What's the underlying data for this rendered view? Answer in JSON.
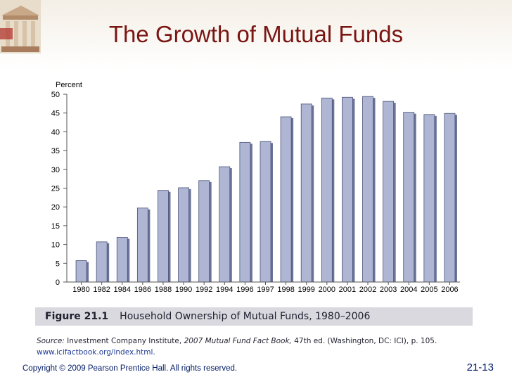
{
  "slide": {
    "title": "The Growth of Mutual Funds"
  },
  "chart_data": {
    "type": "bar",
    "ylabel": "Percent",
    "ylim": [
      0,
      50
    ],
    "yticks": [
      0,
      5,
      10,
      15,
      20,
      25,
      30,
      35,
      40,
      45,
      50
    ],
    "grid": false,
    "categories": [
      "1980",
      "1982",
      "1984",
      "1986",
      "1988",
      "1990",
      "1992",
      "1994",
      "1996",
      "1997",
      "1998",
      "1999",
      "2000",
      "2001",
      "2002",
      "2003",
      "2004",
      "2005",
      "2006"
    ],
    "values": [
      5.7,
      10.7,
      11.9,
      19.7,
      24.4,
      25.1,
      27.0,
      30.7,
      37.2,
      37.4,
      44.0,
      47.4,
      49.0,
      49.2,
      49.4,
      48.1,
      45.2,
      44.6,
      44.9
    ],
    "colors": {
      "bar_face": "#aeb6d4",
      "bar_edge": "#4b527a",
      "bar_shadow": "#6b7398",
      "axis": "#555555"
    }
  },
  "figure": {
    "number": "Figure 21.1",
    "title": "Household Ownership of Mutual Funds, 1980–2006"
  },
  "source": {
    "lead": "Source:",
    "text_a": " Investment Company Institute, ",
    "book": "2007 Mutual Fund Fact Book,",
    "text_b": " 47th ed. (Washington, DC: ICI), p. 105.",
    "link": "www.icifactbook.org/index.html."
  },
  "footer": {
    "copyright": "Copyright © 2009 Pearson Prentice Hall. All rights reserved.",
    "page": "21-13"
  }
}
